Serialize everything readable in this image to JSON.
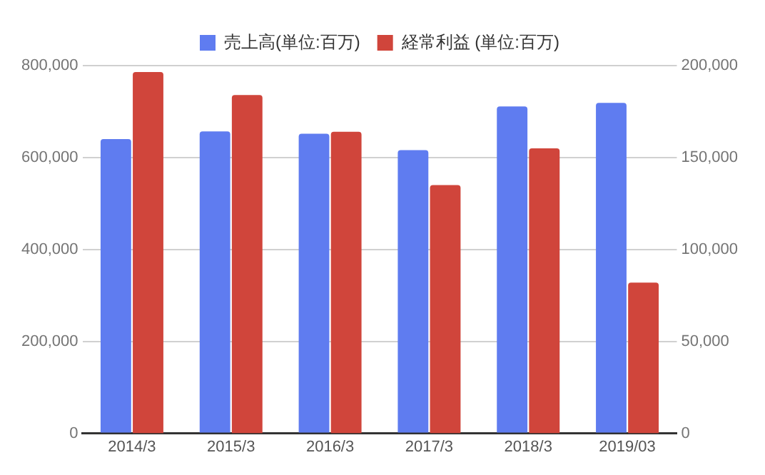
{
  "chart_data": {
    "type": "bar",
    "categories": [
      "2014/3",
      "2015/3",
      "2016/3",
      "2017/3",
      "2018/3",
      "2019/03"
    ],
    "series": [
      {
        "name": "売上高(単位:百万)",
        "color": "#5f7cf0",
        "values": [
          640000,
          657000,
          652000,
          616000,
          711000,
          719000
        ]
      },
      {
        "name": "経常利益 (単位:百万)",
        "color": "#d0453b",
        "axis": "y2",
        "values": [
          196500,
          184000,
          164000,
          135000,
          155000,
          82000
        ]
      }
    ],
    "ylim": [
      0,
      800000
    ],
    "yticks": [
      {
        "value": 0,
        "label": "0"
      },
      {
        "value": 200000,
        "label": "200,000"
      },
      {
        "value": 400000,
        "label": "400,000"
      },
      {
        "value": 600000,
        "label": "600,000"
      },
      {
        "value": 800000,
        "label": "800,000"
      }
    ],
    "y2lim": [
      0,
      200000
    ],
    "y2ticks": [
      {
        "value": 0,
        "label": "0"
      },
      {
        "value": 50000,
        "label": "50,000"
      },
      {
        "value": 100000,
        "label": "100,000"
      },
      {
        "value": 150000,
        "label": "150,000"
      },
      {
        "value": 200000,
        "label": "200,000"
      }
    ],
    "grid": "y",
    "legend": "top"
  }
}
